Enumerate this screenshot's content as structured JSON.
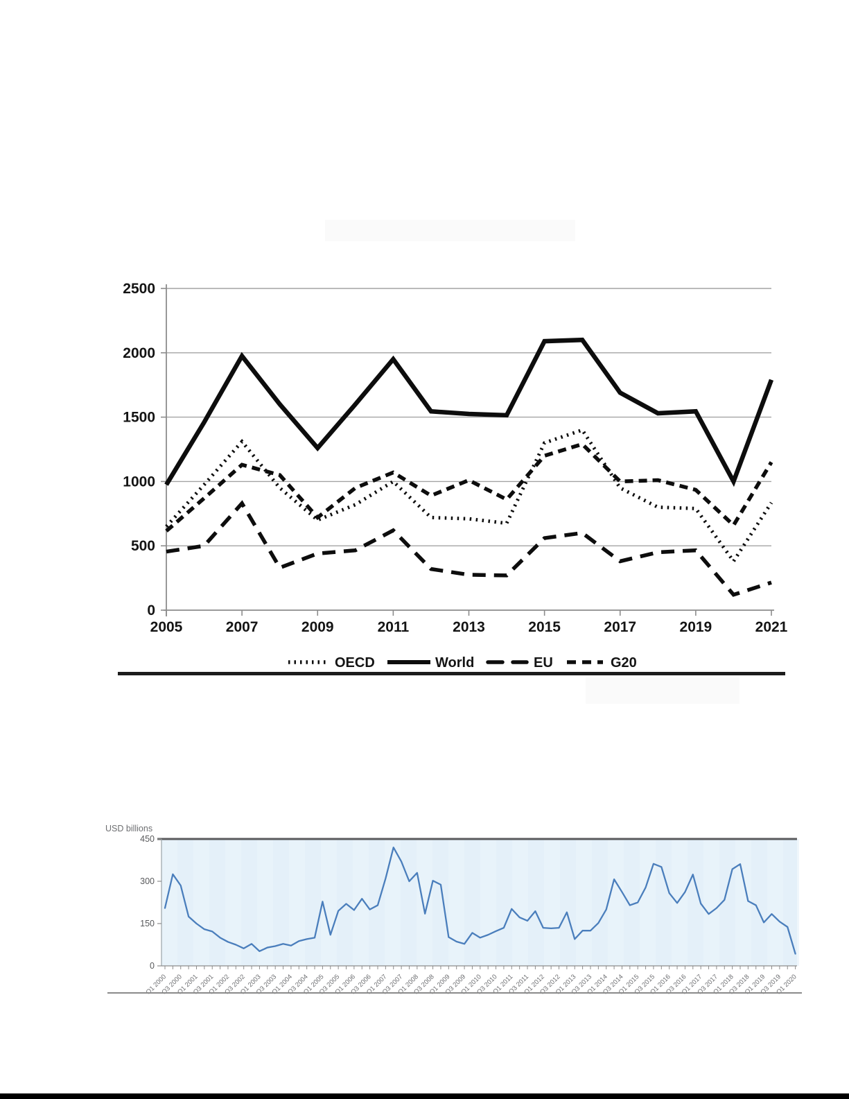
{
  "page": {
    "background": "#ffffff",
    "bottom_bar_color": "#000000"
  },
  "chart_data": [
    {
      "id": "annual-flows-chart",
      "type": "line",
      "title": "",
      "x": [
        2005,
        2006,
        2007,
        2008,
        2009,
        2010,
        2011,
        2012,
        2013,
        2014,
        2015,
        2016,
        2017,
        2018,
        2019,
        2020,
        2021
      ],
      "x_tick_labels": [
        "2005",
        "2007",
        "2009",
        "2011",
        "2013",
        "2015",
        "2017",
        "2019",
        "2021"
      ],
      "yticks": [
        0,
        500,
        1000,
        1500,
        2000,
        2500
      ],
      "y_tick_labels": [
        "0",
        "500",
        "1000",
        "1500",
        "2000",
        "2500"
      ],
      "ylim": [
        0,
        2500
      ],
      "grid": true,
      "legend_position": "bottom",
      "series": [
        {
          "name": "OECD",
          "line_style": "dotted",
          "color": "#0d0d0d",
          "values": [
            650,
            975,
            1310,
            950,
            700,
            820,
            1000,
            720,
            710,
            675,
            1300,
            1400,
            950,
            800,
            790,
            380,
            835
          ]
        },
        {
          "name": "World",
          "line_style": "solid",
          "color": "#0d0d0d",
          "values": [
            975,
            1460,
            1975,
            1600,
            1260,
            1600,
            1950,
            1545,
            1525,
            1515,
            2090,
            2100,
            1690,
            1530,
            1545,
            1000,
            1790
          ]
        },
        {
          "name": "EU",
          "line_style": "long-dash",
          "color": "#0d0d0d",
          "values": [
            455,
            500,
            830,
            330,
            440,
            465,
            620,
            320,
            275,
            270,
            560,
            600,
            380,
            450,
            465,
            120,
            215
          ]
        },
        {
          "name": "G20",
          "line_style": "dash",
          "color": "#0d0d0d",
          "values": [
            615,
            870,
            1130,
            1050,
            720,
            950,
            1070,
            890,
            1010,
            860,
            1200,
            1290,
            1000,
            1010,
            935,
            660,
            1150
          ]
        }
      ]
    },
    {
      "id": "quarterly-flows-chart",
      "type": "line",
      "ylabel": "USD billions",
      "frequency": "quarterly",
      "x_start": "Q1 2000",
      "x_end": "Q1 2020",
      "points_per_tick": 2,
      "x_tick_labels": [
        "Q1 2000",
        "Q3 2000",
        "Q1 2001",
        "Q3 2001",
        "Q1 2002",
        "Q3 2002",
        "Q1 2003",
        "Q3 2003",
        "Q1 2004",
        "Q3 2004",
        "Q1 2005",
        "Q3 2005",
        "Q1 2006",
        "Q3 2006",
        "Q1 2007",
        "Q3 2007",
        "Q1 2008",
        "Q3 2008",
        "Q1 2009",
        "Q3 2009",
        "Q1 2010",
        "Q3 2010",
        "Q1 2011",
        "Q3 2011",
        "Q1 2012",
        "Q3 2012",
        "Q1 2013",
        "Q3 2013",
        "Q1 2014",
        "Q3 2014",
        "Q1 2015",
        "Q3 2015",
        "Q1 2016",
        "Q3 2016",
        "Q1 2017",
        "Q3 2017",
        "Q1 2018",
        "Q3 2018",
        "Q1 2019",
        "Q3 2019",
        "Q1 2020"
      ],
      "yticks": [
        0,
        150,
        300,
        450
      ],
      "y_tick_labels": [
        "0",
        "150",
        "300",
        "450"
      ],
      "ylim": [
        0,
        450
      ],
      "line_color": "#4a7ebc",
      "plot_background": "#e8f3fa",
      "top_border_color": "#595a5c",
      "values": [
        205,
        325,
        285,
        175,
        150,
        130,
        122,
        100,
        85,
        75,
        62,
        78,
        52,
        65,
        70,
        78,
        72,
        88,
        95,
        100,
        228,
        110,
        195,
        220,
        198,
        238,
        200,
        215,
        310,
        420,
        370,
        300,
        330,
        185,
        302,
        288,
        102,
        86,
        78,
        117,
        100,
        110,
        123,
        135,
        202,
        172,
        160,
        194,
        135,
        133,
        135,
        190,
        95,
        125,
        125,
        152,
        200,
        307,
        262,
        215,
        225,
        278,
        362,
        351,
        258,
        223,
        262,
        324,
        221,
        184,
        205,
        234,
        343,
        361,
        230,
        215,
        154,
        184,
        157,
        138,
        43
      ]
    }
  ]
}
